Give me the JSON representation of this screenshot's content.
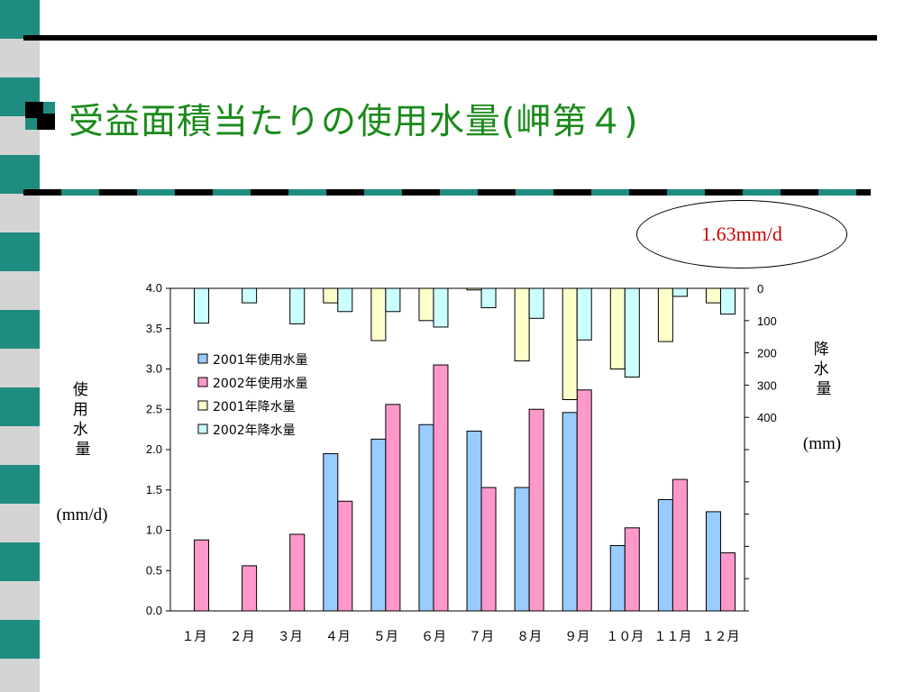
{
  "slide": {
    "title": "受益面積当たりの使用水量(岬第４)",
    "callout": "1.63mm/d",
    "colors": {
      "title": "#1a8a1a",
      "accent_teal": "#1f8c80",
      "callout_text": "#cc0000"
    }
  },
  "chart_data": {
    "type": "bar",
    "categories": [
      "１月",
      "２月",
      "３月",
      "４月",
      "５月",
      "６月",
      "７月",
      "８月",
      "９月",
      "１０月",
      "１１月",
      "１２月"
    ],
    "series": [
      {
        "name": "2001年使用水量",
        "axis": "left",
        "color": "#99ccff",
        "values": [
          0,
          0,
          0,
          1.95,
          2.13,
          2.31,
          2.23,
          1.53,
          2.46,
          0.81,
          1.38,
          1.23
        ]
      },
      {
        "name": "2002年使用水量",
        "axis": "left",
        "color": "#ff99cc",
        "values": [
          0.88,
          0.56,
          0.95,
          1.36,
          2.56,
          3.05,
          1.53,
          2.5,
          2.74,
          1.03,
          1.63,
          0.72
        ]
      },
      {
        "name": "2001年降水量",
        "axis": "right",
        "color": "#ffffcc",
        "values": [
          0,
          0,
          0,
          45,
          162,
          100,
          5,
          225,
          345,
          250,
          165,
          45
        ]
      },
      {
        "name": "2002年降水量",
        "axis": "right",
        "color": "#ccffff",
        "values": [
          108,
          45,
          110,
          72,
          72,
          120,
          60,
          93,
          160,
          275,
          25,
          80
        ]
      }
    ],
    "left_axis": {
      "label": "使用水量",
      "unit": "(mm/d)",
      "min": 0,
      "max": 4.0,
      "ticks": [
        "0.0",
        "0.5",
        "1.0",
        "1.5",
        "2.0",
        "2.5",
        "3.0",
        "3.5",
        "4.0"
      ]
    },
    "right_axis": {
      "label": "降水量",
      "unit": "(mm)",
      "min": 0,
      "max": 1000,
      "reversed": true,
      "ticks": [
        "0",
        "100",
        "200",
        "300",
        "400"
      ]
    },
    "legend_position": "upper-left inside plot",
    "grid": false
  }
}
